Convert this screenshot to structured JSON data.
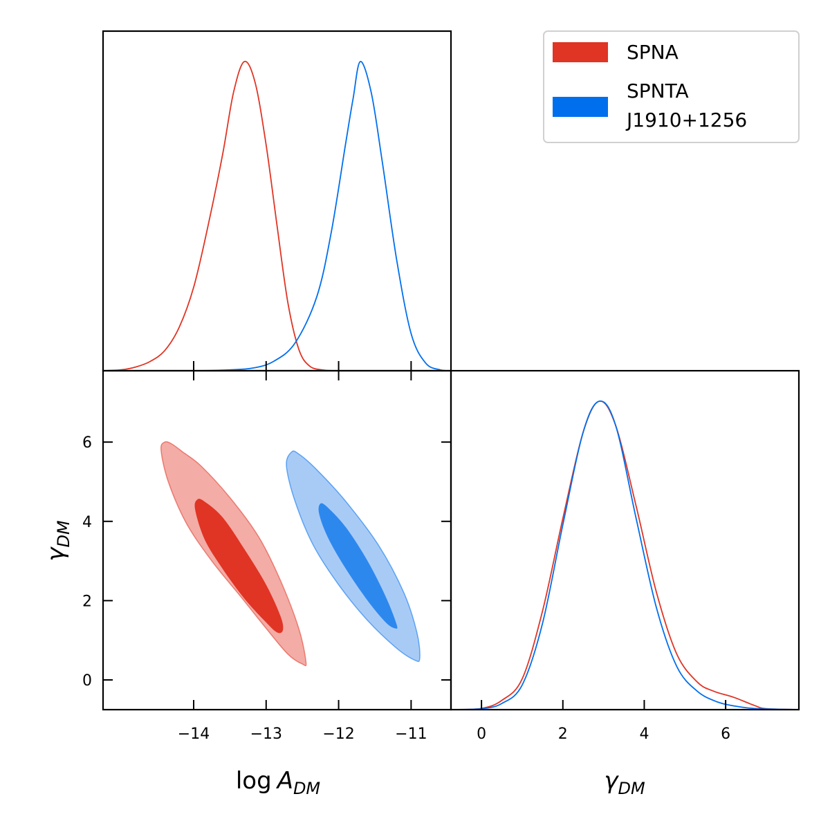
{
  "chart_data": {
    "type": "corner",
    "legend": {
      "placement": "top-right",
      "entries": [
        {
          "lines": [
            "SPNA"
          ],
          "color_key": "spna"
        },
        {
          "lines": [
            "SPNTA",
            "J1910+1256"
          ],
          "color_key": "spnta"
        }
      ]
    },
    "colors": {
      "spna": "#e03424",
      "spna_light": "#f3aca6",
      "spnta": "#006fed",
      "spnta_light": "#a8cbf6",
      "spnta_dark_fill": "#2d88ee"
    },
    "params": [
      {
        "key": "logA",
        "label_main": "log",
        "label_symbol": "A",
        "label_sub": "DM",
        "range": [
          -15.25,
          -10.45
        ]
      },
      {
        "key": "gamma",
        "label_symbol": "γ",
        "label_sub": "DM",
        "range": [
          -0.75,
          7.8
        ]
      }
    ],
    "ticks": {
      "logA": [
        -14,
        -13,
        -12,
        -11
      ],
      "logA_labels": [
        "−14",
        "−13",
        "−12",
        "−11"
      ],
      "gamma_y": [
        0,
        2,
        4,
        6
      ],
      "gamma_y_labels": [
        "0",
        "2",
        "4",
        "6"
      ],
      "gamma_x": [
        0,
        2,
        4,
        6
      ],
      "gamma_x_labels": [
        "0",
        "2",
        "4",
        "6"
      ]
    },
    "series": [
      {
        "key": "spna",
        "name": "SPNA",
        "logA_marginal": [
          [
            -15.25,
            0.0
          ],
          [
            -15.0,
            0.003
          ],
          [
            -14.8,
            0.012
          ],
          [
            -14.6,
            0.03
          ],
          [
            -14.4,
            0.065
          ],
          [
            -14.2,
            0.14
          ],
          [
            -14.0,
            0.27
          ],
          [
            -13.8,
            0.47
          ],
          [
            -13.6,
            0.7
          ],
          [
            -13.45,
            0.9
          ],
          [
            -13.3,
            1.0
          ],
          [
            -13.15,
            0.93
          ],
          [
            -13.0,
            0.73
          ],
          [
            -12.85,
            0.47
          ],
          [
            -12.7,
            0.22
          ],
          [
            -12.55,
            0.07
          ],
          [
            -12.4,
            0.015
          ],
          [
            -12.2,
            0.002
          ],
          [
            -12.0,
            0.0
          ]
        ],
        "gamma_marginal": [
          [
            -0.75,
            0.0
          ],
          [
            0.0,
            0.004
          ],
          [
            0.5,
            0.03
          ],
          [
            1.0,
            0.1
          ],
          [
            1.5,
            0.32
          ],
          [
            2.0,
            0.62
          ],
          [
            2.5,
            0.9
          ],
          [
            2.9,
            1.0
          ],
          [
            3.3,
            0.92
          ],
          [
            3.8,
            0.66
          ],
          [
            4.3,
            0.38
          ],
          [
            4.8,
            0.18
          ],
          [
            5.3,
            0.09
          ],
          [
            5.7,
            0.06
          ],
          [
            6.2,
            0.04
          ],
          [
            6.7,
            0.014
          ],
          [
            7.0,
            0.003
          ],
          [
            7.8,
            0.0
          ]
        ],
        "contour_95": [
          [
            -14.4,
            6.0
          ],
          [
            -14.3,
            5.95
          ],
          [
            -14.15,
            5.75
          ],
          [
            -13.9,
            5.4
          ],
          [
            -13.5,
            4.6
          ],
          [
            -13.1,
            3.6
          ],
          [
            -12.8,
            2.5
          ],
          [
            -12.55,
            1.3
          ],
          [
            -12.45,
            0.45
          ],
          [
            -12.5,
            0.4
          ],
          [
            -12.7,
            0.65
          ],
          [
            -13.0,
            1.3
          ],
          [
            -13.35,
            2.1
          ],
          [
            -13.75,
            3.0
          ],
          [
            -14.1,
            3.95
          ],
          [
            -14.35,
            5.0
          ],
          [
            -14.45,
            5.8
          ]
        ],
        "contour_68": [
          [
            -13.95,
            4.55
          ],
          [
            -13.85,
            4.5
          ],
          [
            -13.6,
            4.1
          ],
          [
            -13.3,
            3.3
          ],
          [
            -13.0,
            2.4
          ],
          [
            -12.8,
            1.6
          ],
          [
            -12.77,
            1.25
          ],
          [
            -12.85,
            1.2
          ],
          [
            -13.0,
            1.45
          ],
          [
            -13.3,
            2.05
          ],
          [
            -13.6,
            2.8
          ],
          [
            -13.85,
            3.55
          ],
          [
            -13.98,
            4.3
          ]
        ]
      },
      {
        "key": "spnta",
        "name": "SPNTA",
        "logA_marginal": [
          [
            -14.0,
            0.0
          ],
          [
            -13.6,
            0.002
          ],
          [
            -13.2,
            0.008
          ],
          [
            -12.9,
            0.03
          ],
          [
            -12.6,
            0.09
          ],
          [
            -12.3,
            0.24
          ],
          [
            -12.1,
            0.45
          ],
          [
            -11.9,
            0.74
          ],
          [
            -11.8,
            0.88
          ],
          [
            -11.7,
            1.0
          ],
          [
            -11.55,
            0.9
          ],
          [
            -11.4,
            0.68
          ],
          [
            -11.2,
            0.36
          ],
          [
            -11.0,
            0.12
          ],
          [
            -10.8,
            0.025
          ],
          [
            -10.6,
            0.003
          ],
          [
            -10.45,
            0.0
          ]
        ],
        "gamma_marginal": [
          [
            -0.75,
            0.0
          ],
          [
            0.0,
            0.003
          ],
          [
            0.5,
            0.02
          ],
          [
            1.0,
            0.08
          ],
          [
            1.5,
            0.28
          ],
          [
            2.0,
            0.6
          ],
          [
            2.5,
            0.9
          ],
          [
            2.9,
            1.0
          ],
          [
            3.3,
            0.92
          ],
          [
            3.8,
            0.62
          ],
          [
            4.3,
            0.33
          ],
          [
            4.8,
            0.14
          ],
          [
            5.3,
            0.06
          ],
          [
            5.8,
            0.025
          ],
          [
            6.3,
            0.01
          ],
          [
            6.8,
            0.003
          ],
          [
            7.8,
            0.0
          ]
        ],
        "contour_95": [
          [
            -12.65,
            5.75
          ],
          [
            -12.55,
            5.7
          ],
          [
            -12.3,
            5.3
          ],
          [
            -11.9,
            4.5
          ],
          [
            -11.45,
            3.4
          ],
          [
            -11.1,
            2.2
          ],
          [
            -10.92,
            1.2
          ],
          [
            -10.88,
            0.55
          ],
          [
            -10.95,
            0.5
          ],
          [
            -11.2,
            0.8
          ],
          [
            -11.6,
            1.5
          ],
          [
            -12.0,
            2.4
          ],
          [
            -12.35,
            3.4
          ],
          [
            -12.6,
            4.5
          ],
          [
            -12.72,
            5.4
          ]
        ],
        "contour_68": [
          [
            -12.25,
            4.45
          ],
          [
            -12.15,
            4.35
          ],
          [
            -11.9,
            3.85
          ],
          [
            -11.6,
            3.0
          ],
          [
            -11.35,
            2.1
          ],
          [
            -11.2,
            1.4
          ],
          [
            -11.22,
            1.3
          ],
          [
            -11.35,
            1.45
          ],
          [
            -11.6,
            2.0
          ],
          [
            -11.9,
            2.8
          ],
          [
            -12.15,
            3.6
          ],
          [
            -12.27,
            4.2
          ]
        ]
      }
    ]
  }
}
